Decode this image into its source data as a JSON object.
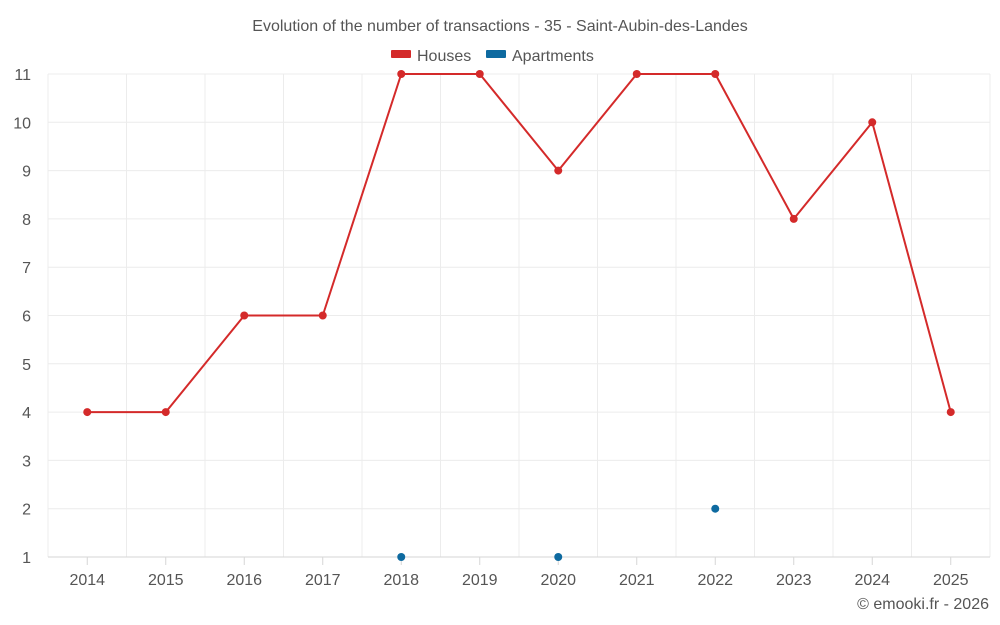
{
  "chart_data": {
    "type": "line",
    "title": "Evolution of the number of transactions - 35 - Saint-Aubin-des-Landes",
    "categories": [
      "2014",
      "2015",
      "2016",
      "2017",
      "2018",
      "2019",
      "2020",
      "2021",
      "2022",
      "2023",
      "2024",
      "2025"
    ],
    "series": [
      {
        "name": "Houses",
        "color": "#d42a2a",
        "values": [
          4,
          4,
          6,
          6,
          11,
          11,
          9,
          11,
          11,
          8,
          10,
          4
        ]
      },
      {
        "name": "Apartments",
        "color": "#0e6aa0",
        "values": [
          null,
          null,
          null,
          null,
          1,
          null,
          1,
          null,
          2,
          null,
          null,
          null
        ]
      }
    ],
    "yticks": [
      1,
      2,
      3,
      4,
      5,
      6,
      7,
      8,
      9,
      10,
      11
    ],
    "ylim": [
      1,
      11
    ],
    "xlabel": "",
    "ylabel": "",
    "legend": "top-center",
    "grid": true
  },
  "credit": "© emooki.fr - 2026"
}
